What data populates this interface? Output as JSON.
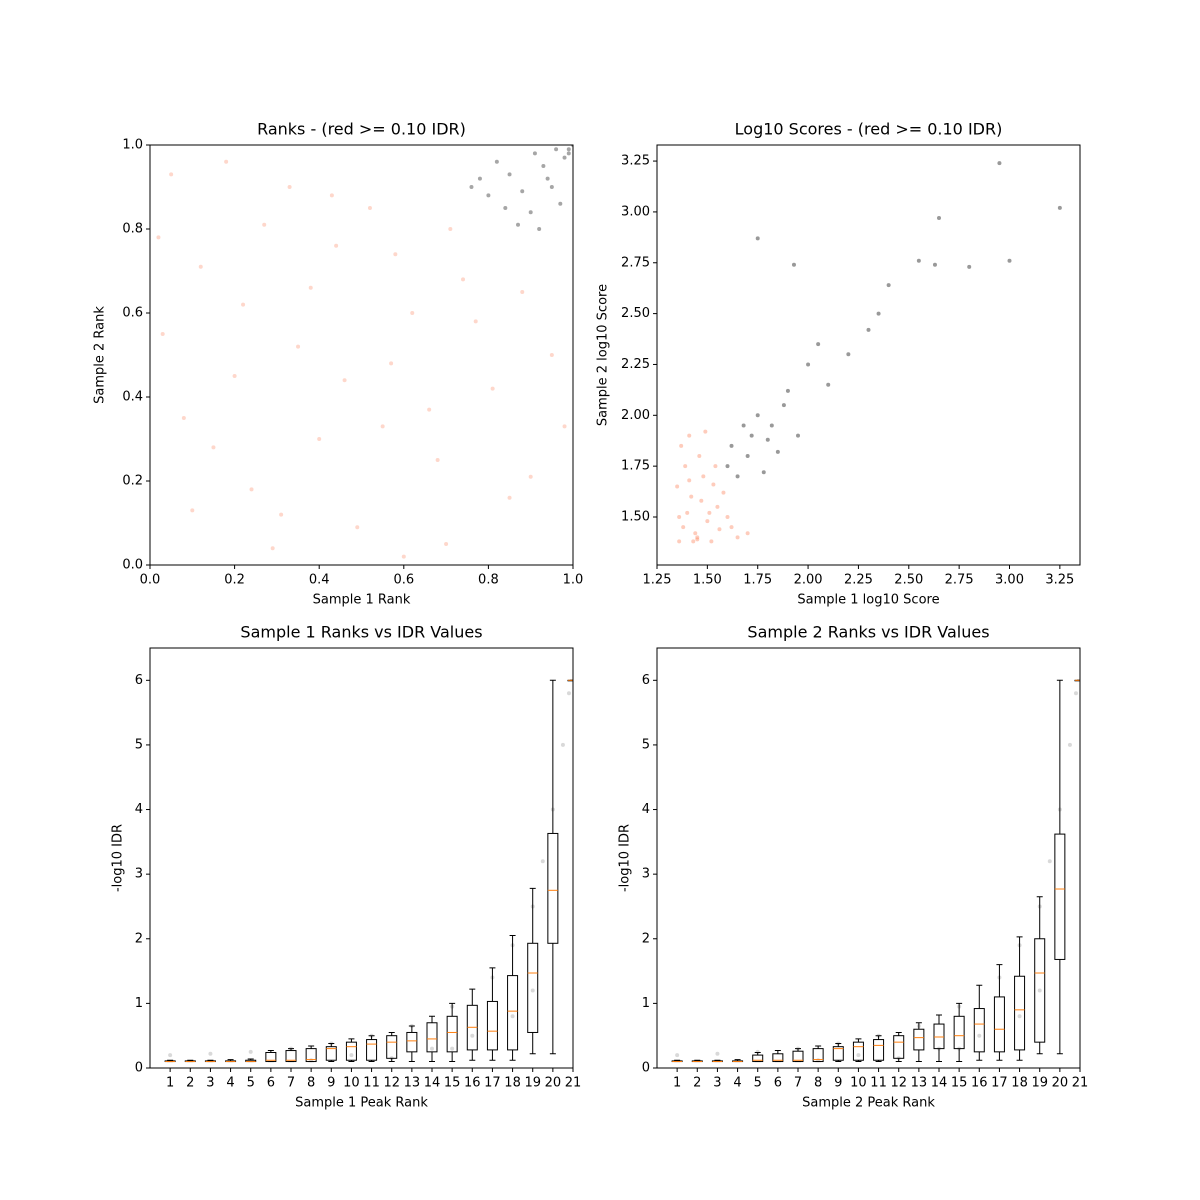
{
  "chart_data": [
    {
      "type": "scatter",
      "title": "Ranks - (red >= 0.10 IDR)",
      "xlabel": "Sample 1 Rank",
      "ylabel": "Sample 2 Rank",
      "xlim": [
        0,
        1
      ],
      "ylim": [
        0,
        1
      ],
      "xticks": [
        {
          "value": 0,
          "label": "0.0"
        },
        0.2,
        0.4,
        0.6,
        0.8,
        {
          "value": 1,
          "label": "1.0"
        }
      ],
      "yticks": [
        {
          "value": 0,
          "label": "0.0"
        },
        0.2,
        0.4,
        0.6,
        0.8,
        {
          "value": 1,
          "label": "1.0"
        }
      ],
      "series": [
        {
          "color": "#fc8d6a",
          "alpha": 0.35,
          "x": [
            0.05,
            0.12,
            0.2,
            0.31,
            0.43,
            0.55,
            0.62,
            0.7,
            0.81,
            0.9,
            0.03,
            0.15,
            0.27,
            0.38,
            0.49,
            0.58,
            0.66,
            0.74,
            0.85,
            0.95,
            0.08,
            0.18,
            0.24,
            0.35,
            0.46,
            0.52,
            0.68,
            0.77,
            0.6,
            0.4,
            0.1,
            0.22,
            0.33,
            0.44,
            0.57,
            0.71,
            0.88,
            0.98,
            0.02,
            0.29
          ],
          "values": [
            0.93,
            0.71,
            0.45,
            0.12,
            0.88,
            0.33,
            0.6,
            0.05,
            0.42,
            0.21,
            0.55,
            0.28,
            0.81,
            0.66,
            0.09,
            0.74,
            0.37,
            0.68,
            0.16,
            0.5,
            0.35,
            0.96,
            0.18,
            0.52,
            0.44,
            0.85,
            0.25,
            0.58,
            0.02,
            0.3,
            0.13,
            0.62,
            0.9,
            0.76,
            0.48,
            0.8,
            0.65,
            0.33,
            0.78,
            0.04
          ]
        },
        {
          "color": "#000000",
          "alpha": 0.35,
          "x": [
            0.8,
            0.85,
            0.9,
            0.95,
            0.98,
            0.99,
            0.82,
            0.87,
            0.93,
            0.97,
            0.78,
            0.91,
            1.0,
            0.96,
            0.88,
            0.84,
            0.94,
            0.99,
            0.76,
            0.92
          ],
          "values": [
            0.88,
            0.93,
            0.84,
            0.9,
            0.97,
            0.99,
            0.96,
            0.81,
            0.95,
            0.86,
            0.92,
            0.98,
            1.0,
            0.99,
            0.89,
            0.85,
            0.92,
            0.98,
            0.9,
            0.8
          ]
        }
      ]
    },
    {
      "type": "scatter",
      "title": "Log10 Scores - (red >= 0.10 IDR)",
      "xlabel": "Sample 1 log10 Score",
      "ylabel": "Sample 2 log10 Score",
      "xlim": [
        1.25,
        3.35
      ],
      "ylim": [
        1.264,
        3.329
      ],
      "xticks": [
        1.25,
        {
          "value": 1.5,
          "label": "1.50"
        },
        1.75,
        {
          "value": 2,
          "label": "2.00"
        },
        2.25,
        {
          "value": 2.5,
          "label": "2.50"
        },
        2.75,
        {
          "value": 3,
          "label": "3.00"
        },
        3.25
      ],
      "yticks": [
        {
          "value": 1.5,
          "label": "1.50"
        },
        1.75,
        {
          "value": 2,
          "label": "2.00"
        },
        2.25,
        {
          "value": 2.5,
          "label": "2.50"
        },
        2.75,
        {
          "value": 3,
          "label": "3.00"
        },
        3.25
      ],
      "series": [
        {
          "color": "#fc8d6a",
          "alpha": 0.45,
          "x": [
            1.36,
            1.38,
            1.4,
            1.42,
            1.45,
            1.48,
            1.5,
            1.52,
            1.55,
            1.58,
            1.37,
            1.41,
            1.44,
            1.47,
            1.53,
            1.6,
            1.62,
            1.65,
            1.39,
            1.43,
            1.46,
            1.51,
            1.56,
            1.35,
            1.7,
            1.49,
            1.54,
            1.41,
            1.36,
            1.45
          ],
          "values": [
            1.38,
            1.45,
            1.52,
            1.6,
            1.4,
            1.7,
            1.48,
            1.38,
            1.55,
            1.62,
            1.85,
            1.9,
            1.42,
            1.58,
            1.66,
            1.5,
            1.45,
            1.4,
            1.75,
            1.38,
            1.8,
            1.52,
            1.44,
            1.65,
            1.42,
            1.92,
            1.75,
            1.68,
            1.5,
            1.39
          ]
        },
        {
          "color": "#000000",
          "alpha": 0.4,
          "x": [
            1.6,
            1.62,
            1.65,
            1.68,
            1.7,
            1.72,
            1.75,
            1.78,
            1.8,
            1.82,
            1.85,
            1.88,
            1.9,
            1.95,
            2.0,
            2.05,
            2.1,
            2.2,
            2.3,
            2.4,
            2.55,
            2.65,
            2.8,
            2.95,
            3.0,
            3.25,
            1.75,
            1.93,
            2.35,
            2.63
          ],
          "values": [
            1.75,
            1.85,
            1.7,
            1.95,
            1.8,
            1.9,
            2.0,
            1.72,
            1.88,
            1.95,
            1.82,
            2.05,
            2.12,
            1.9,
            2.25,
            2.35,
            2.15,
            2.3,
            2.42,
            2.64,
            2.76,
            2.97,
            2.73,
            3.24,
            2.76,
            3.02,
            2.87,
            2.74,
            2.5,
            2.74
          ]
        }
      ]
    },
    {
      "type": "box",
      "title": "Sample 1 Ranks vs IDR Values",
      "xlabel": "Sample 1 Peak Rank",
      "ylabel": "-log10 IDR",
      "xlim": [
        0,
        21
      ],
      "ylim": [
        0,
        6.5
      ],
      "xticks": [
        1,
        2,
        3,
        4,
        5,
        6,
        7,
        8,
        9,
        10,
        11,
        12,
        13,
        14,
        15,
        16,
        17,
        18,
        19,
        20,
        21
      ],
      "yticks": [
        0,
        1,
        2,
        3,
        4,
        5,
        6
      ],
      "x": [
        1,
        2,
        3,
        4,
        5,
        6,
        7,
        8,
        9,
        10,
        11,
        12,
        13,
        14,
        15,
        16,
        17,
        18,
        19,
        20,
        21
      ],
      "whislo": [
        0.1,
        0.1,
        0.1,
        0.1,
        0.1,
        0.1,
        0.1,
        0.1,
        0.1,
        0.1,
        0.1,
        0.1,
        0.1,
        0.1,
        0.1,
        0.12,
        0.12,
        0.12,
        0.22,
        0.22,
        6
      ],
      "q1": [
        0.1,
        0.1,
        0.1,
        0.1,
        0.1,
        0.1,
        0.1,
        0.1,
        0.12,
        0.12,
        0.12,
        0.15,
        0.25,
        0.25,
        0.25,
        0.28,
        0.28,
        0.28,
        0.55,
        1.93,
        6
      ],
      "med": [
        0.1,
        0.1,
        0.1,
        0.1,
        0.1,
        0.12,
        0.12,
        0.13,
        0.3,
        0.33,
        0.37,
        0.4,
        0.42,
        0.45,
        0.55,
        0.63,
        0.57,
        0.88,
        1.47,
        2.75,
        6
      ],
      "q3": [
        0.11,
        0.11,
        0.11,
        0.11,
        0.12,
        0.24,
        0.27,
        0.3,
        0.33,
        0.4,
        0.44,
        0.5,
        0.55,
        0.7,
        0.8,
        0.97,
        1.03,
        1.43,
        1.93,
        3.63,
        6
      ],
      "whishi": [
        0.12,
        0.12,
        0.12,
        0.13,
        0.14,
        0.27,
        0.3,
        0.34,
        0.38,
        0.45,
        0.5,
        0.55,
        0.65,
        0.8,
        1.0,
        1.22,
        1.55,
        2.05,
        2.78,
        6,
        6
      ],
      "points": {
        "color": "#000000",
        "alpha": 0.15,
        "x": [
          1,
          3,
          5,
          7,
          9,
          11,
          13,
          15,
          17,
          18,
          19,
          19.5,
          20,
          20.5,
          20.8,
          8,
          12,
          14,
          16,
          18,
          19,
          10,
          15
        ],
        "values": [
          0.2,
          0.22,
          0.25,
          0.3,
          0.38,
          0.5,
          0.65,
          0.95,
          1.4,
          1.9,
          2.5,
          3.2,
          4.0,
          5.0,
          5.8,
          0.12,
          0.15,
          0.3,
          0.5,
          0.8,
          1.2,
          0.2,
          0.3
        ]
      }
    },
    {
      "type": "box",
      "title": "Sample 2 Ranks vs IDR Values",
      "xlabel": "Sample 2 Peak Rank",
      "ylabel": "-log10 IDR",
      "xlim": [
        0,
        21
      ],
      "ylim": [
        0,
        6.5
      ],
      "xticks": [
        1,
        2,
        3,
        4,
        5,
        6,
        7,
        8,
        9,
        10,
        11,
        12,
        13,
        14,
        15,
        16,
        17,
        18,
        19,
        20,
        21
      ],
      "yticks": [
        0,
        1,
        2,
        3,
        4,
        5,
        6
      ],
      "x": [
        1,
        2,
        3,
        4,
        5,
        6,
        7,
        8,
        9,
        10,
        11,
        12,
        13,
        14,
        15,
        16,
        17,
        18,
        19,
        20,
        21
      ],
      "whislo": [
        0.1,
        0.1,
        0.1,
        0.1,
        0.1,
        0.1,
        0.1,
        0.1,
        0.1,
        0.1,
        0.1,
        0.1,
        0.1,
        0.1,
        0.1,
        0.12,
        0.12,
        0.12,
        0.22,
        0.22,
        6
      ],
      "q1": [
        0.1,
        0.1,
        0.1,
        0.1,
        0.1,
        0.1,
        0.1,
        0.1,
        0.12,
        0.12,
        0.12,
        0.15,
        0.28,
        0.3,
        0.3,
        0.25,
        0.25,
        0.28,
        0.4,
        1.68,
        6
      ],
      "med": [
        0.1,
        0.1,
        0.1,
        0.1,
        0.12,
        0.12,
        0.12,
        0.13,
        0.3,
        0.33,
        0.35,
        0.4,
        0.47,
        0.48,
        0.5,
        0.68,
        0.6,
        0.9,
        1.47,
        2.77,
        6
      ],
      "q3": [
        0.11,
        0.11,
        0.11,
        0.11,
        0.2,
        0.22,
        0.26,
        0.3,
        0.33,
        0.4,
        0.44,
        0.5,
        0.6,
        0.68,
        0.8,
        0.92,
        1.1,
        1.42,
        2.0,
        3.62,
        6
      ],
      "whishi": [
        0.12,
        0.12,
        0.12,
        0.13,
        0.24,
        0.27,
        0.3,
        0.34,
        0.38,
        0.45,
        0.5,
        0.55,
        0.7,
        0.82,
        1.0,
        1.28,
        1.6,
        2.03,
        2.65,
        6,
        6
      ],
      "points": {
        "color": "#000000",
        "alpha": 0.15,
        "x": [
          1,
          3,
          5,
          7,
          9,
          11,
          13,
          15,
          17,
          18,
          19,
          19.5,
          20,
          20.5,
          20.8,
          8,
          12,
          14,
          16,
          18,
          19,
          10,
          15
        ],
        "values": [
          0.2,
          0.22,
          0.25,
          0.3,
          0.38,
          0.5,
          0.65,
          0.95,
          1.4,
          1.9,
          2.5,
          3.2,
          4.0,
          5.0,
          5.8,
          0.12,
          0.15,
          0.3,
          0.5,
          0.8,
          1.2,
          0.2,
          0.3
        ]
      }
    }
  ]
}
